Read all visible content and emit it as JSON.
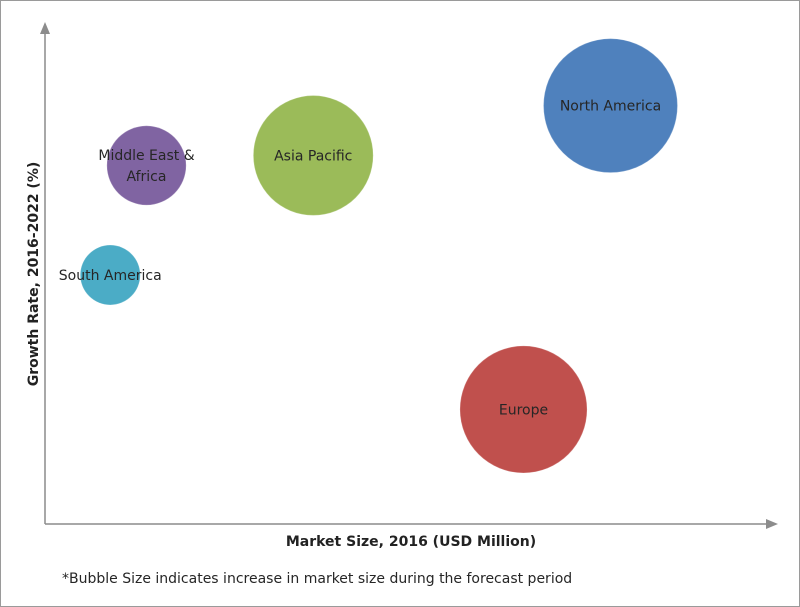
{
  "chart_data": {
    "type": "bubble",
    "xlabel": "Market Size, 2016 (USD Million)",
    "ylabel": "Growth Rate, 2016-2022 (%)",
    "footnote": "*Bubble Size indicates increase in market size during the forecast period",
    "axes_numeric_labels": false,
    "grid": false,
    "xlim": [
      0,
      100
    ],
    "ylim": [
      0,
      100
    ],
    "points": [
      {
        "name": "North America",
        "label_lines": [
          "North America"
        ],
        "x": 78,
        "y": 84,
        "size": 100,
        "color": "#4f81bd"
      },
      {
        "name": "Asia Pacific",
        "label_lines": [
          "Asia Pacific"
        ],
        "x": 37,
        "y": 74,
        "size": 80,
        "color": "#9bbb59"
      },
      {
        "name": "Middle East & Africa",
        "label_lines": [
          "Middle East &",
          "Africa"
        ],
        "x": 14,
        "y": 72,
        "size": 35,
        "color": "#8064a2"
      },
      {
        "name": "South America",
        "label_lines": [
          "South America"
        ],
        "x": 9,
        "y": 50,
        "size": 20,
        "color": "#4bacc6"
      },
      {
        "name": "Europe",
        "label_lines": [
          "Europe"
        ],
        "x": 66,
        "y": 23,
        "size": 90,
        "color": "#c0504d"
      }
    ]
  }
}
